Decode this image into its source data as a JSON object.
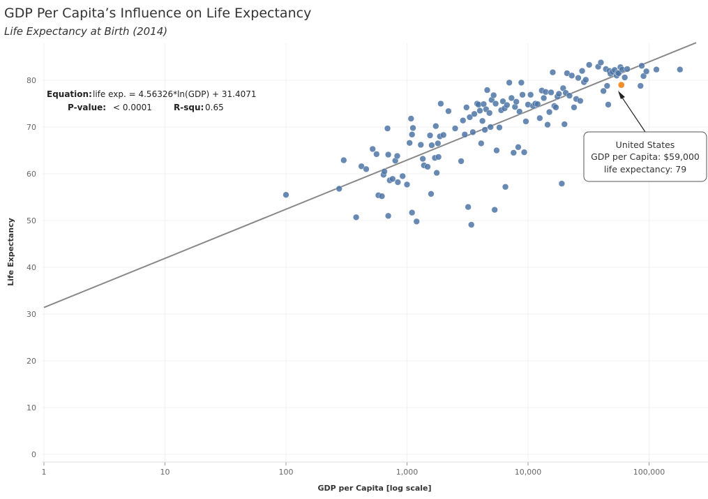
{
  "header": {
    "title": "GDP Per Capita’s Influence on Life Expectancy",
    "subtitle": "Life Expectancy at Birth (2014)"
  },
  "annotation": {
    "equation_label": "Equation:",
    "equation_value": "life exp. = 4.56326*ln(GDP) + 31.4071",
    "pvalue_label": "P-value:",
    "pvalue_value": "< 0.0001",
    "rsq_label": "R-squ:",
    "rsq_value": "0.65"
  },
  "tooltip": {
    "title": "United States",
    "line1": "GDP per Capita: $59,000",
    "line2": "life expectancy: 79"
  },
  "colors": {
    "point": "#4e74a5",
    "highlight": "#f28e2b",
    "trend": "#888888",
    "text": "#333333"
  },
  "chart_data": {
    "type": "scatter",
    "title": "GDP Per Capita’s Influence on Life Expectancy",
    "subtitle": "Life Expectancy at Birth (2014)",
    "xlabel": "GDP per Capita [log scale]",
    "ylabel": "Life Expectancy",
    "x_scale": "log",
    "xlim": [
      1,
      250000
    ],
    "ylim": [
      0,
      88
    ],
    "x_ticks": [
      1,
      10,
      100,
      1000,
      10000,
      100000
    ],
    "x_tick_labels": [
      "1",
      "10",
      "100",
      "1,000",
      "10,000",
      "100,000"
    ],
    "y_ticks": [
      0,
      10,
      20,
      30,
      40,
      50,
      60,
      70,
      80
    ],
    "y_tick_labels": [
      "0",
      "10",
      "20",
      "30",
      "40",
      "50",
      "60",
      "70",
      "80"
    ],
    "grid": true,
    "trendline": {
      "slope": 4.56326,
      "intercept": 31.4071,
      "form": "ln"
    },
    "highlight": {
      "name": "United States",
      "x": 59000,
      "y": 79
    },
    "series": [
      {
        "points": [
          [
            100,
            55.5
          ],
          [
            275,
            56.8
          ],
          [
            300,
            62.9
          ],
          [
            380,
            50.7
          ],
          [
            420,
            61.6
          ],
          [
            460,
            61.0
          ],
          [
            520,
            65.3
          ],
          [
            560,
            64.2
          ],
          [
            580,
            55.4
          ],
          [
            620,
            55.2
          ],
          [
            640,
            59.8
          ],
          [
            650,
            60.5
          ],
          [
            690,
            69.7
          ],
          [
            700,
            64.1
          ],
          [
            700,
            51.0
          ],
          [
            720,
            58.6
          ],
          [
            760,
            58.9
          ],
          [
            800,
            62.8
          ],
          [
            830,
            63.8
          ],
          [
            840,
            58.2
          ],
          [
            920,
            59.5
          ],
          [
            1000,
            57.7
          ],
          [
            1050,
            66.6
          ],
          [
            1080,
            71.8
          ],
          [
            1100,
            68.4
          ],
          [
            1100,
            51.7
          ],
          [
            1120,
            69.8
          ],
          [
            1200,
            49.8
          ],
          [
            1300,
            66.2
          ],
          [
            1350,
            63.2
          ],
          [
            1380,
            61.8
          ],
          [
            1480,
            61.5
          ],
          [
            1550,
            68.2
          ],
          [
            1580,
            55.7
          ],
          [
            1600,
            66.1
          ],
          [
            1700,
            63.4
          ],
          [
            1730,
            70.2
          ],
          [
            1760,
            60.2
          ],
          [
            1800,
            66.5
          ],
          [
            1820,
            63.6
          ],
          [
            1870,
            68.0
          ],
          [
            1900,
            75.0
          ],
          [
            2000,
            68.3
          ],
          [
            2200,
            73.4
          ],
          [
            2500,
            69.7
          ],
          [
            2800,
            62.7
          ],
          [
            2900,
            71.4
          ],
          [
            3000,
            68.4
          ],
          [
            3100,
            74.2
          ],
          [
            3200,
            52.9
          ],
          [
            3300,
            72.1
          ],
          [
            3400,
            49.1
          ],
          [
            3500,
            68.9
          ],
          [
            3600,
            72.8
          ],
          [
            3800,
            75.0
          ],
          [
            3900,
            74.8
          ],
          [
            4000,
            73.5
          ],
          [
            4100,
            66.5
          ],
          [
            4200,
            71.3
          ],
          [
            4300,
            74.9
          ],
          [
            4400,
            69.4
          ],
          [
            4500,
            73.8
          ],
          [
            4600,
            77.9
          ],
          [
            4800,
            73.0
          ],
          [
            4900,
            70.0
          ],
          [
            5000,
            75.8
          ],
          [
            5200,
            76.8
          ],
          [
            5400,
            75.0
          ],
          [
            5500,
            65.0
          ],
          [
            5300,
            52.3
          ],
          [
            5800,
            69.9
          ],
          [
            6000,
            73.6
          ],
          [
            6200,
            75.5
          ],
          [
            6400,
            74.0
          ],
          [
            6500,
            57.2
          ],
          [
            6700,
            74.7
          ],
          [
            7000,
            79.5
          ],
          [
            7300,
            76.2
          ],
          [
            7600,
            64.5
          ],
          [
            7800,
            74.3
          ],
          [
            8000,
            75.4
          ],
          [
            8300,
            65.7
          ],
          [
            8500,
            73.3
          ],
          [
            8800,
            79.5
          ],
          [
            9000,
            76.9
          ],
          [
            9300,
            64.6
          ],
          [
            9600,
            71.2
          ],
          [
            10000,
            74.8
          ],
          [
            10500,
            76.9
          ],
          [
            11000,
            74.5
          ],
          [
            11500,
            75.0
          ],
          [
            12000,
            74.9
          ],
          [
            12500,
            71.9
          ],
          [
            13000,
            77.8
          ],
          [
            13500,
            76.2
          ],
          [
            14000,
            77.5
          ],
          [
            14500,
            70.5
          ],
          [
            15000,
            73.2
          ],
          [
            15500,
            77.4
          ],
          [
            16000,
            81.7
          ],
          [
            16500,
            74.5
          ],
          [
            17000,
            74.2
          ],
          [
            17500,
            76.5
          ],
          [
            18000,
            77.1
          ],
          [
            19000,
            57.9
          ],
          [
            19500,
            78.3
          ],
          [
            20000,
            70.6
          ],
          [
            20500,
            77.3
          ],
          [
            21000,
            81.5
          ],
          [
            22000,
            76.7
          ],
          [
            23000,
            81.0
          ],
          [
            24000,
            74.2
          ],
          [
            25000,
            76.0
          ],
          [
            26000,
            80.5
          ],
          [
            27000,
            75.6
          ],
          [
            28000,
            82.0
          ],
          [
            29000,
            79.6
          ],
          [
            30000,
            80.1
          ],
          [
            32000,
            83.3
          ],
          [
            38000,
            82.9
          ],
          [
            40000,
            83.8
          ],
          [
            42000,
            77.7
          ],
          [
            44000,
            82.4
          ],
          [
            45000,
            78.8
          ],
          [
            46000,
            74.8
          ],
          [
            47000,
            82.0
          ],
          [
            48000,
            81.4
          ],
          [
            50000,
            81.8
          ],
          [
            52000,
            82.2
          ],
          [
            54000,
            81.0
          ],
          [
            55000,
            81.6
          ],
          [
            56000,
            81.5
          ],
          [
            58000,
            82.8
          ],
          [
            60000,
            82.3
          ],
          [
            63000,
            80.6
          ],
          [
            66000,
            82.4
          ],
          [
            85000,
            78.8
          ],
          [
            87000,
            83.1
          ],
          [
            90000,
            80.9
          ],
          [
            95000,
            81.9
          ],
          [
            115000,
            82.3
          ],
          [
            180000,
            82.3
          ]
        ]
      }
    ]
  }
}
